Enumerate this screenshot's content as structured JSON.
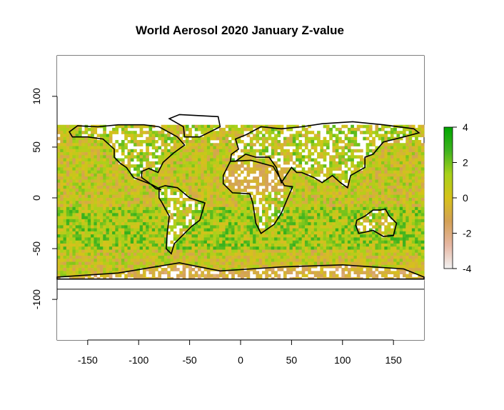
{
  "chart_data": {
    "type": "heatmap",
    "title": "World Aerosol 2020 January Z-value",
    "xlabel": "",
    "ylabel": "",
    "xlim": [
      -180,
      180
    ],
    "ylim": [
      -140,
      140
    ],
    "x_ticks": [
      "-150",
      "-100",
      "-50",
      "0",
      "50",
      "100",
      "150"
    ],
    "x_tick_values": [
      -150,
      -100,
      -50,
      0,
      50,
      100,
      150
    ],
    "y_ticks": [
      "-100",
      "-50",
      "0",
      "50",
      "100"
    ],
    "y_tick_values": [
      -100,
      -50,
      0,
      50,
      100
    ],
    "data_lat_range": [
      -80,
      72
    ],
    "horizontal_line_lat": -90,
    "legend": {
      "position": "right",
      "min": -4,
      "max": 4,
      "ticks": [
        "-4",
        "-2",
        "0",
        "2",
        "4"
      ],
      "tick_values": [
        -4,
        -2,
        0,
        2,
        4
      ],
      "colors": [
        "#f2f2f2",
        "#e6b7a3",
        "#d4a157",
        "#d6c21a",
        "#a8d11a",
        "#3fb31f",
        "#00a600"
      ]
    },
    "grid": false
  }
}
